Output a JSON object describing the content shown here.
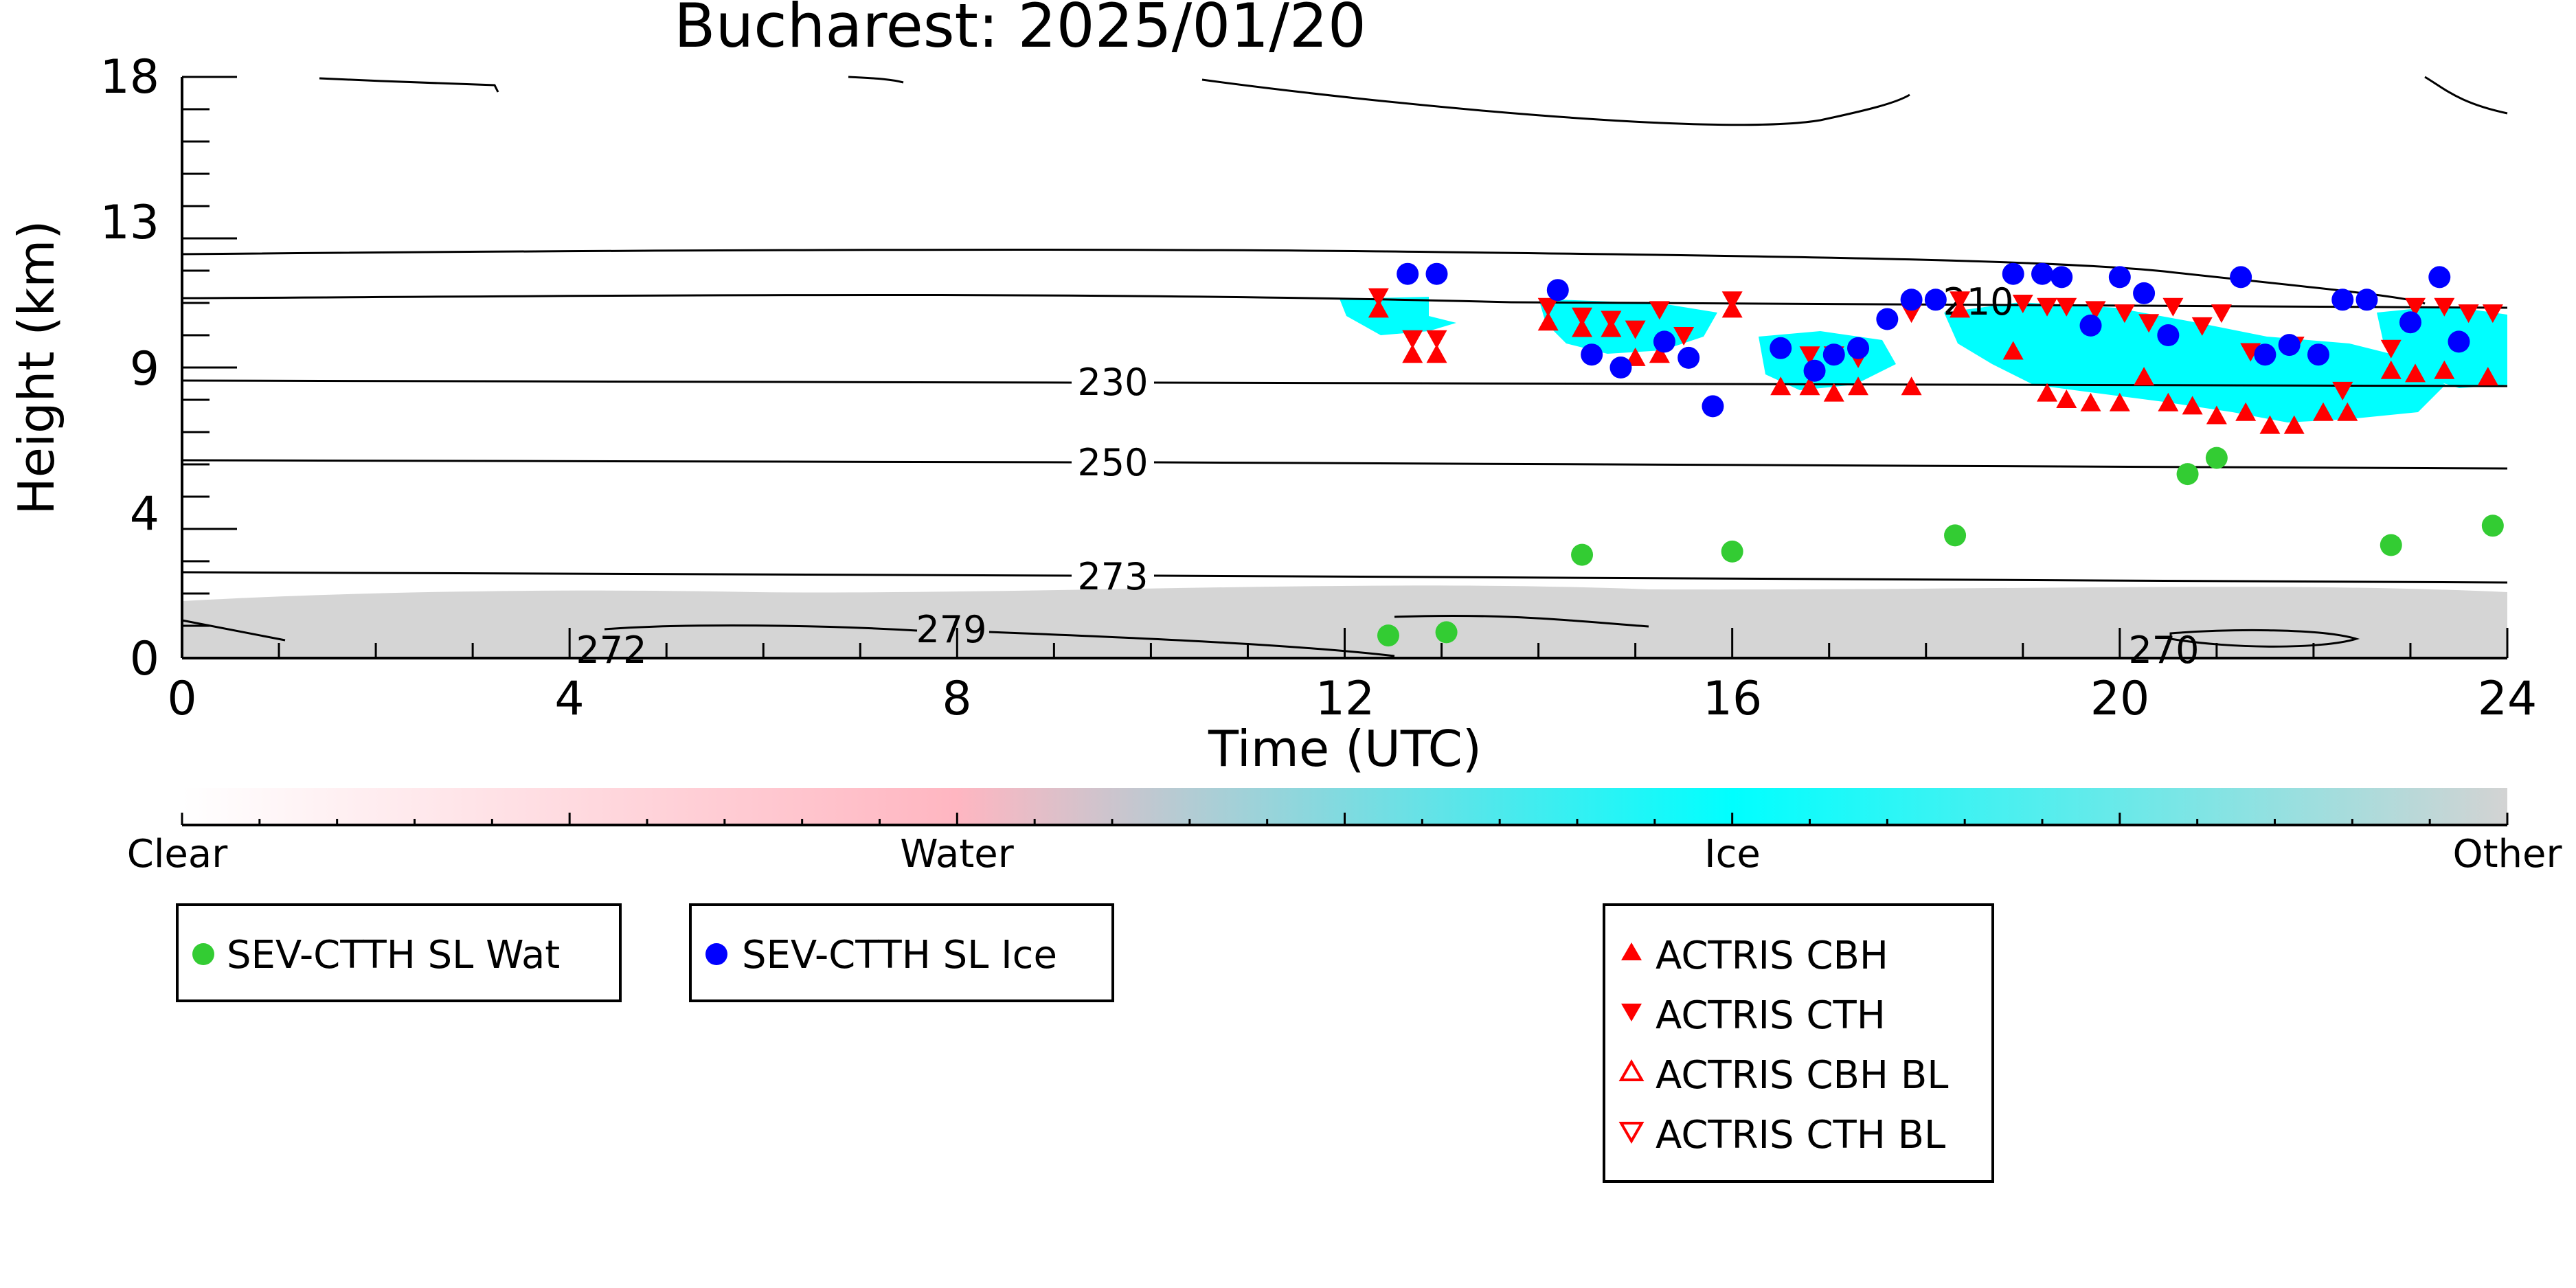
{
  "chart_data": {
    "type": "scatter",
    "title": "Bucharest: 2025/01/20",
    "xlabel": "Time (UTC)",
    "ylabel": "Height (km)",
    "xlim": [
      0,
      24
    ],
    "ylim": [
      0,
      18
    ],
    "x_ticks": [
      "0",
      "4",
      "8",
      "12",
      "16",
      "20",
      "24"
    ],
    "y_ticks": [
      "0",
      "4",
      "9",
      "13",
      "18"
    ],
    "contour_labels": [
      "210",
      "230",
      "250",
      "273",
      "279",
      "272",
      "270"
    ],
    "colorbar": {
      "labels": [
        "Clear",
        "Water",
        "Ice",
        "Other"
      ],
      "colors": [
        "#ffffff",
        "#ffb6c1",
        "#00ffff",
        "#d3d3d3"
      ]
    },
    "legend_satellite": [
      "SEV-CTTH SL Wat",
      "SEV-CTTH SL Ice"
    ],
    "legend_actris": [
      "ACTRIS CBH",
      "ACTRIS CTH",
      "ACTRIS CBH BL",
      "ACTRIS CTH BL"
    ],
    "colors": {
      "water_marker": "#33cc33",
      "ice_marker": "#0000ff",
      "actris": "#ff0000",
      "ice_mask": "#00ffff",
      "other_mask": "#d3d3d3"
    },
    "series": [
      {
        "name": "SEV-CTTH SL Wat",
        "x": [
          12.45,
          13.05,
          14.45,
          16.0,
          18.3,
          20.7,
          21.0,
          22.8,
          23.85
        ],
        "y": [
          0.7,
          0.8,
          3.2,
          3.3,
          3.8,
          5.7,
          6.2,
          3.5,
          4.1
        ]
      },
      {
        "name": "SEV-CTTH SL Ice",
        "x": [
          12.65,
          12.95,
          14.2,
          14.55,
          14.85,
          15.3,
          15.55,
          15.8,
          16.5,
          16.85,
          17.05,
          17.3,
          17.6,
          17.85,
          18.1,
          18.9,
          19.2,
          19.4,
          19.7,
          20.0,
          20.25,
          20.5,
          21.25,
          21.5,
          21.75,
          22.05,
          22.3,
          22.55,
          23.0,
          23.3,
          23.5
        ],
        "y": [
          11.9,
          11.9,
          11.4,
          9.4,
          9.0,
          9.8,
          9.3,
          7.8,
          9.6,
          8.9,
          9.4,
          9.6,
          10.5,
          11.1,
          11.1,
          11.9,
          11.9,
          11.8,
          10.3,
          11.8,
          11.3,
          10.0,
          11.8,
          9.4,
          9.7,
          9.4,
          11.1,
          11.1,
          10.4,
          11.8,
          9.8
        ]
      },
      {
        "name": "ACTRIS CBH",
        "x": [
          12.35,
          12.7,
          12.95,
          14.1,
          14.45,
          14.75,
          15.0,
          15.25,
          16.0,
          16.5,
          16.8,
          17.05,
          17.3,
          17.85,
          18.35,
          18.9,
          19.25,
          19.45,
          19.7,
          20.0,
          20.25,
          20.5,
          20.75,
          21.0,
          21.3,
          21.55,
          21.8,
          22.1,
          22.35,
          22.8,
          23.05,
          23.35,
          23.8
        ],
        "y": [
          10.8,
          9.4,
          9.4,
          10.4,
          10.2,
          10.2,
          9.3,
          9.4,
          10.8,
          8.4,
          8.4,
          8.2,
          8.4,
          8.4,
          10.8,
          9.5,
          8.2,
          8.0,
          7.9,
          7.9,
          8.7,
          7.9,
          7.8,
          7.5,
          7.6,
          7.2,
          7.2,
          7.6,
          7.6,
          8.9,
          8.8,
          8.9,
          8.7
        ]
      },
      {
        "name": "ACTRIS CTH",
        "x": [
          12.35,
          12.7,
          12.95,
          14.1,
          14.45,
          14.75,
          15.0,
          15.25,
          15.5,
          16.0,
          16.8,
          17.05,
          17.3,
          17.85,
          18.35,
          19.0,
          19.25,
          19.45,
          19.75,
          20.05,
          20.3,
          20.55,
          20.85,
          21.05,
          21.35,
          21.8,
          22.3,
          22.8,
          23.05,
          23.35,
          23.6,
          23.85
        ],
        "y": [
          11.2,
          9.9,
          9.9,
          10.9,
          10.6,
          10.5,
          10.2,
          10.8,
          10.0,
          11.1,
          9.4,
          9.4,
          9.3,
          10.7,
          11.1,
          11.0,
          10.9,
          10.9,
          10.8,
          10.7,
          10.4,
          10.9,
          10.3,
          10.7,
          9.5,
          9.7,
          8.3,
          9.6,
          10.9,
          10.9,
          10.7,
          10.7
        ]
      },
      {
        "name": "ACTRIS CBH BL",
        "x": [],
        "y": []
      },
      {
        "name": "ACTRIS CTH BL",
        "x": [],
        "y": []
      }
    ],
    "grid": false
  }
}
